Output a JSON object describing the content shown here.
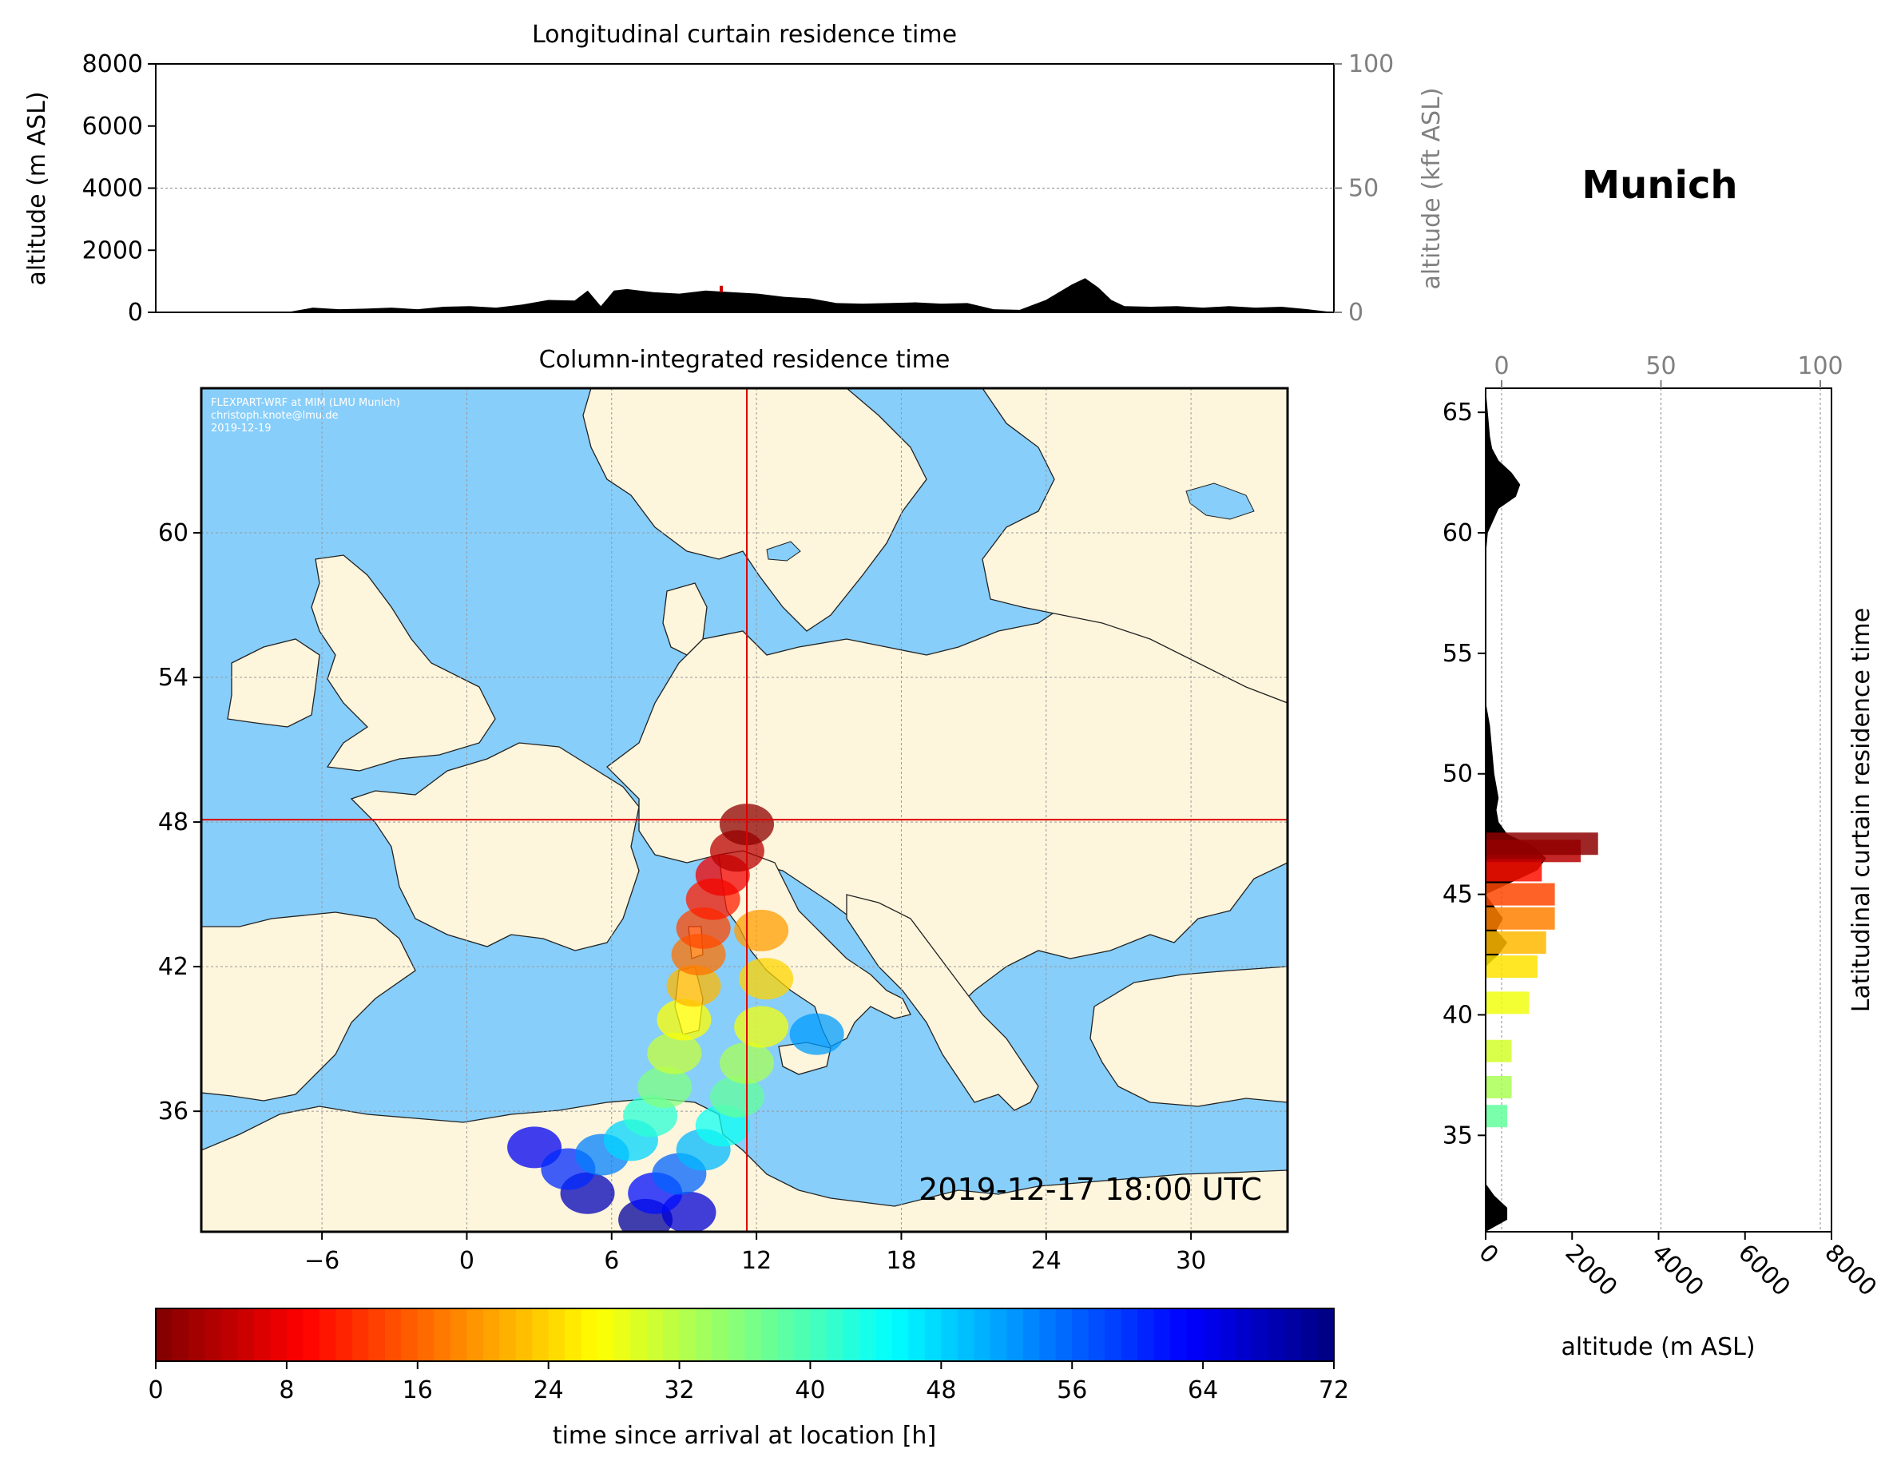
{
  "location_title": "Munich",
  "timestamp": "2019-12-17 18:00 UTC",
  "credits": {
    "line1": "FLEXPART-WRF at MIM (LMU Munich)",
    "line2": "christoph.knote@lmu.de",
    "line3": "2019-12-19"
  },
  "colors": {
    "land": "#fdf5dc",
    "ocean": "#87cefa",
    "crosshair": "#dd0000",
    "terrain": "#000000",
    "secondary_axis": "#808080"
  },
  "chart_data": [
    {
      "type": "area",
      "title": "Longitudinal curtain residence time",
      "ylabel": "altitude (m ASL)",
      "ylabel_right": "altitude (kft ASL)",
      "ylim": [
        0,
        8000
      ],
      "yticks": [
        "0",
        "2000",
        "4000",
        "6000",
        "8000"
      ],
      "yticks_right": [
        "0",
        "50",
        "100"
      ],
      "xlim": [
        -10,
        35
      ],
      "terrain_lon": [
        -10,
        -5,
        -4,
        -3,
        -2,
        -1,
        0,
        1,
        2,
        3,
        4,
        5,
        6,
        6.5,
        7,
        7.5,
        8,
        9,
        10,
        11,
        12,
        13,
        14,
        15,
        16,
        17,
        18,
        19,
        20,
        21,
        22,
        23,
        24,
        25,
        25.5,
        26,
        26.5,
        27,
        28,
        29,
        30,
        31,
        32,
        33,
        34,
        35
      ],
      "terrain_alt": [
        0,
        0,
        150,
        100,
        120,
        150,
        100,
        180,
        200,
        150,
        250,
        400,
        380,
        700,
        200,
        700,
        750,
        650,
        600,
        700,
        650,
        600,
        500,
        450,
        300,
        280,
        300,
        320,
        280,
        300,
        100,
        80,
        400,
        900,
        1100,
        800,
        400,
        200,
        180,
        200,
        150,
        200,
        150,
        180,
        100,
        0
      ],
      "residence_marker": {
        "lon": 11.6,
        "alt": 700
      }
    },
    {
      "type": "scatter",
      "title": "Column-integrated residence time",
      "xlim": [
        -11,
        34
      ],
      "ylim": [
        31,
        66
      ],
      "xticks": [
        "−6",
        "0",
        "6",
        "12",
        "18",
        "24",
        "30"
      ],
      "yticks": [
        "36",
        "42",
        "48",
        "54",
        "60"
      ],
      "crosshair": {
        "lon": 11.6,
        "lat": 48.1
      },
      "plume": [
        {
          "lon": 11.6,
          "lat": 47.9,
          "h": 1
        },
        {
          "lon": 11.2,
          "lat": 46.8,
          "h": 4
        },
        {
          "lon": 10.6,
          "lat": 45.8,
          "h": 8
        },
        {
          "lon": 10.2,
          "lat": 44.8,
          "h": 11
        },
        {
          "lon": 9.8,
          "lat": 43.6,
          "h": 14
        },
        {
          "lon": 9.6,
          "lat": 42.5,
          "h": 17
        },
        {
          "lon": 12.2,
          "lat": 43.5,
          "h": 20
        },
        {
          "lon": 9.4,
          "lat": 41.2,
          "h": 22
        },
        {
          "lon": 12.4,
          "lat": 41.5,
          "h": 24
        },
        {
          "lon": 9.0,
          "lat": 39.8,
          "h": 27
        },
        {
          "lon": 12.2,
          "lat": 39.5,
          "h": 28
        },
        {
          "lon": 8.6,
          "lat": 38.4,
          "h": 31
        },
        {
          "lon": 11.6,
          "lat": 38.0,
          "h": 33
        },
        {
          "lon": 8.2,
          "lat": 37.0,
          "h": 36
        },
        {
          "lon": 11.2,
          "lat": 36.6,
          "h": 38
        },
        {
          "lon": 14.5,
          "lat": 39.2,
          "h": 52
        },
        {
          "lon": 7.6,
          "lat": 35.8,
          "h": 42
        },
        {
          "lon": 10.6,
          "lat": 35.4,
          "h": 44
        },
        {
          "lon": 6.8,
          "lat": 34.8,
          "h": 48
        },
        {
          "lon": 9.8,
          "lat": 34.4,
          "h": 50
        },
        {
          "lon": 5.6,
          "lat": 34.2,
          "h": 54
        },
        {
          "lon": 8.8,
          "lat": 33.4,
          "h": 56
        },
        {
          "lon": 4.2,
          "lat": 33.6,
          "h": 60
        },
        {
          "lon": 7.8,
          "lat": 32.6,
          "h": 62
        },
        {
          "lon": 2.8,
          "lat": 34.5,
          "h": 64
        },
        {
          "lon": 9.2,
          "lat": 31.8,
          "h": 66
        },
        {
          "lon": 5.0,
          "lat": 32.6,
          "h": 68
        },
        {
          "lon": 7.4,
          "lat": 31.5,
          "h": 70
        }
      ]
    },
    {
      "type": "area",
      "title": "Latitudinal curtain residence time",
      "xlabel": "altitude (m ASL)",
      "xlim": [
        0,
        8000
      ],
      "xticks": [
        "0",
        "2000",
        "4000",
        "6000",
        "8000"
      ],
      "xticks_top": [
        "0",
        "50",
        "100"
      ],
      "ylim": [
        31,
        66
      ],
      "yticks": [
        "35",
        "40",
        "45",
        "50",
        "55",
        "60",
        "65"
      ],
      "terrain_lat": [
        31,
        31.5,
        32,
        32.5,
        33,
        34,
        36,
        38,
        40,
        42,
        42.5,
        43,
        43.5,
        44,
        44.5,
        45,
        45.5,
        46,
        46.5,
        47,
        47.5,
        48,
        48.5,
        49,
        50,
        51,
        52,
        53,
        54,
        55,
        56,
        57,
        58,
        59,
        60,
        61,
        61.5,
        62,
        62.5,
        63,
        63.5,
        64,
        65,
        66
      ],
      "terrain_alt": [
        0,
        500,
        500,
        200,
        0,
        0,
        0,
        0,
        0,
        0,
        300,
        500,
        250,
        400,
        200,
        0,
        600,
        1200,
        1400,
        1100,
        500,
        300,
        250,
        300,
        200,
        150,
        100,
        0,
        0,
        0,
        0,
        0,
        0,
        0,
        50,
        300,
        700,
        800,
        600,
        300,
        150,
        100,
        50,
        0
      ],
      "residence": [
        {
          "lat": 47.1,
          "alt": 2600,
          "h": 1
        },
        {
          "lat": 46.8,
          "alt": 2200,
          "h": 4
        },
        {
          "lat": 46.0,
          "alt": 1300,
          "h": 10
        },
        {
          "lat": 45.0,
          "alt": 1600,
          "h": 14
        },
        {
          "lat": 44.0,
          "alt": 1600,
          "h": 18
        },
        {
          "lat": 43.0,
          "alt": 1400,
          "h": 22
        },
        {
          "lat": 42.0,
          "alt": 1200,
          "h": 25
        },
        {
          "lat": 40.5,
          "alt": 1000,
          "h": 28
        },
        {
          "lat": 38.5,
          "alt": 600,
          "h": 30
        },
        {
          "lat": 37.0,
          "alt": 600,
          "h": 33
        },
        {
          "lat": 35.8,
          "alt": 500,
          "h": 38
        }
      ]
    },
    {
      "type": "bar",
      "title": "",
      "xlabel": "time since arrival at location [h]",
      "xlim": [
        0,
        72
      ],
      "xticks": [
        "0",
        "8",
        "16",
        "24",
        "32",
        "40",
        "48",
        "56",
        "64",
        "72"
      ],
      "colormap": "jet_r"
    }
  ]
}
